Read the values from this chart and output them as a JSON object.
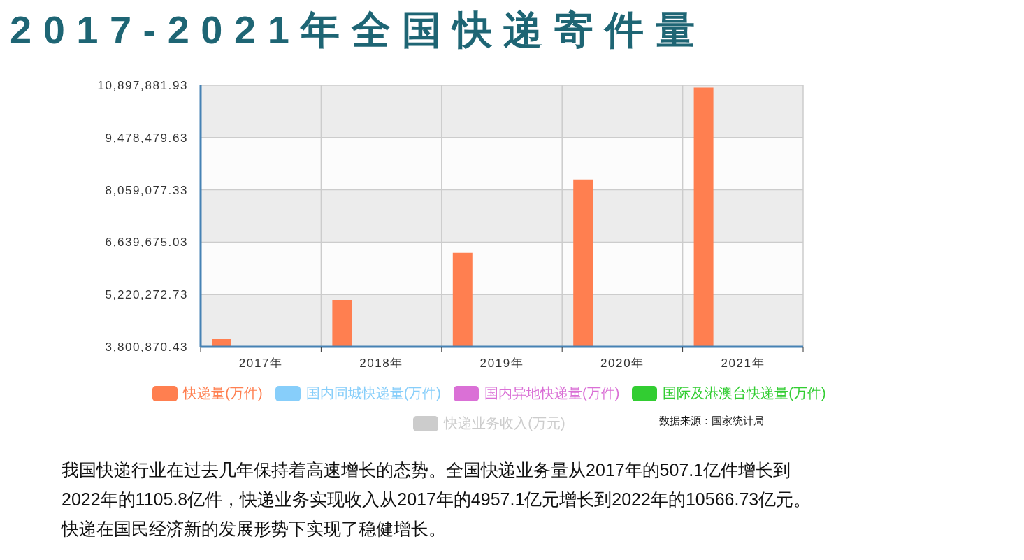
{
  "chart_data": {
    "type": "bar",
    "title": "2017-2021年全国快递寄件量",
    "categories": [
      "2017年",
      "2018年",
      "2019年",
      "2020年",
      "2021年"
    ],
    "series": [
      {
        "name": "快递量(万件)",
        "color": "#ff7f50",
        "values": [
          4010000,
          5070000,
          6350000,
          8340000,
          10830000
        ]
      },
      {
        "name": "国内同城快递量(万件)",
        "color": "#87cefa",
        "values": [
          null,
          null,
          null,
          null,
          null
        ]
      },
      {
        "name": "国内异地快递量(万件)",
        "color": "#da70d6",
        "values": [
          null,
          null,
          null,
          null,
          null
        ]
      },
      {
        "name": "国际及港澳台快递量(万件)",
        "color": "#32cd32",
        "values": [
          null,
          null,
          null,
          null,
          null
        ]
      },
      {
        "name": "快递业务收入(万元)",
        "color": "#cccccc",
        "values": [
          null,
          null,
          null,
          null,
          null
        ]
      }
    ],
    "ylim": [
      3800870.43,
      10897881.93
    ],
    "yticks": [
      {
        "value": 3800870.43,
        "label": "3,800,870.43"
      },
      {
        "value": 5220272.73,
        "label": "5,220,272.73"
      },
      {
        "value": 6639675.03,
        "label": "6,639,675.03"
      },
      {
        "value": 8059077.33,
        "label": "8,059,077.33"
      },
      {
        "value": 9478479.63,
        "label": "9,478,479.63"
      },
      {
        "value": 10897881.93,
        "label": "10,897,881.93"
      }
    ],
    "grid": true,
    "legend": "bottom",
    "annotations": [
      "数据来源：国家统计局",
      "我国快递行业在过去几年保持着高速增长的态势。全国快递业务量从2017年的507.1亿件增长到2022年的1105.8亿件，快递业务实现收入从2017年的4957.1亿元增长到2022年的10566.73亿元。快递在国民经济新的发展形势下实现了稳健增长。"
    ]
  }
}
